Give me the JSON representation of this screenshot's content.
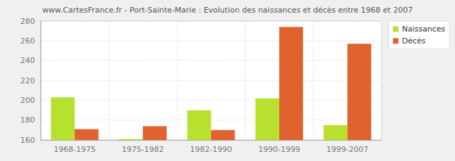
{
  "chart_data": {
    "type": "bar",
    "title": "www.CartesFrance.fr - Port-Sainte-Marie : Evolution des naissances et décès entre 1968 et 2007",
    "categories": [
      "1968-1975",
      "1975-1982",
      "1982-1990",
      "1990-1999",
      "1999-2007"
    ],
    "series": [
      {
        "name": "Naissances",
        "color": "#b8e02e",
        "values": [
          203,
          161,
          190,
          202,
          175
        ]
      },
      {
        "name": "Décès",
        "color": "#e0622e",
        "values": [
          171,
          174,
          170,
          274,
          257
        ]
      }
    ],
    "ylim": [
      160,
      280
    ],
    "yticks": [
      160,
      180,
      200,
      220,
      240,
      260,
      280
    ],
    "grid": true,
    "legend": "upper right"
  }
}
